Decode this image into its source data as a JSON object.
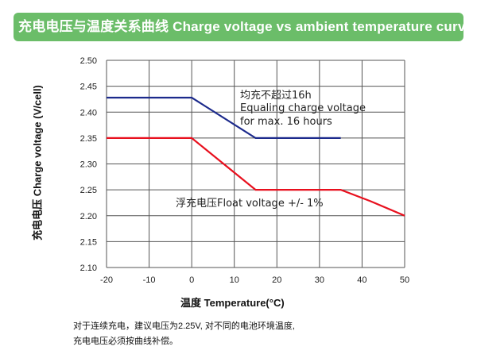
{
  "chart_data": {
    "type": "line",
    "title": "充电电压与温度关系曲线 Charge voltage vs ambient temperature curve",
    "xlabel_cn": "温度",
    "xlabel": "Temperature(°C)",
    "ylabel": "充电电压 Charge voltage (V/cell)",
    "xlim": [
      -20,
      50
    ],
    "ylim": [
      2.1,
      2.5
    ],
    "x_ticks": [
      "-20",
      "-10",
      "0",
      "10",
      "20",
      "30",
      "40",
      "50"
    ],
    "y_ticks": [
      "2.50",
      "2.45",
      "2.40",
      "2.35",
      "2.30",
      "2.25",
      "2.20",
      "2.15",
      "2.10"
    ],
    "grid": true,
    "series": [
      {
        "color": "#1c2a8c",
        "points": [
          [
            -20,
            2.428
          ],
          [
            0,
            2.428
          ],
          [
            15,
            2.35
          ],
          [
            35,
            2.35
          ]
        ]
      },
      {
        "color": "#e8101e",
        "points": [
          [
            -20,
            2.35
          ],
          [
            0,
            2.35
          ],
          [
            15,
            2.25
          ],
          [
            35,
            2.25
          ],
          [
            42,
            2.228
          ],
          [
            50,
            2.2
          ]
        ]
      }
    ],
    "annotations": [
      "均充不超过16h",
      "Equaling charge voltage",
      " for max. 16 hours",
      "浮充电压Float voltage +/- 1%"
    ]
  },
  "notes": [
    "对于连续充电，建议电压为2.25V, 对不同的电池环境温度,",
    "充电电压必须按曲线补偿。"
  ]
}
